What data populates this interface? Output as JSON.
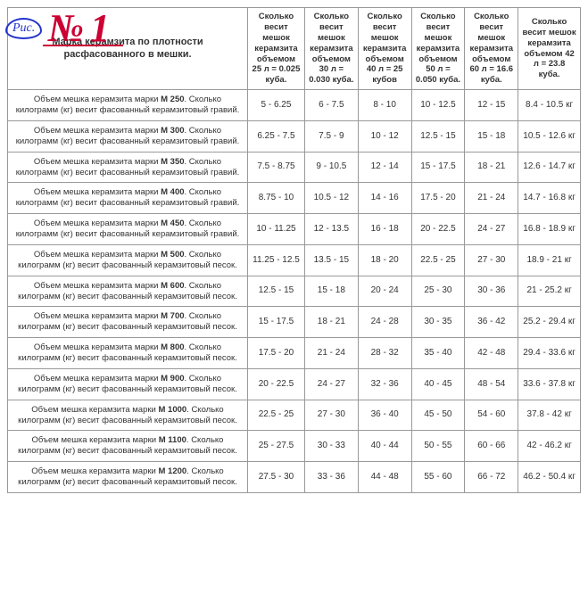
{
  "annotation": {
    "label": "Рис.",
    "number": "№ 1"
  },
  "mainHeader": "Марка керамзита по плотности расфасованного в мешки.",
  "columns": [
    "Сколько весит мешок керамзита объемом 25 л = 0.025 куба.",
    "Сколько весит мешок керамзита объемом 30 л = 0.030 куба.",
    "Сколько весит мешок керамзита объемом 40 л = 25 кубов",
    "Сколько весит мешок керамзита объемом 50 л = 0.050 куба.",
    "Сколько весит мешок керамзита объемом 60 л = 16.6 куба.",
    "Сколько весит мешок керамзита объемом 42 л = 23.8 куба."
  ],
  "rows": [
    {
      "pre": "Объем мешка керамзита марки ",
      "mark": "М 250",
      "post": ". Сколько килограмм (кг) весит фасованный керамзитовый гравий.",
      "v": [
        "5 - 6.25",
        "6 - 7.5",
        "8 - 10",
        "10 - 12.5",
        "12 - 15",
        "8.4 - 10.5 кг"
      ]
    },
    {
      "pre": "Объем мешка керамзита марки ",
      "mark": "М 300",
      "post": ". Сколько килограмм (кг) весит фасованный керамзитовый гравий.",
      "v": [
        "6.25 - 7.5",
        "7.5 - 9",
        "10 - 12",
        "12.5 - 15",
        "15 - 18",
        "10.5 - 12.6 кг"
      ]
    },
    {
      "pre": "Объем мешка керамзита марки ",
      "mark": "М 350",
      "post": ". Сколько килограмм (кг) весит фасованный керамзитовый гравий.",
      "v": [
        "7.5 - 8.75",
        "9 - 10.5",
        "12 - 14",
        "15 - 17.5",
        "18 - 21",
        "12.6 - 14.7 кг"
      ]
    },
    {
      "pre": "Объем мешка керамзита марки ",
      "mark": "М 400",
      "post": ". Сколько килограмм (кг) весит фасованный керамзитовый гравий.",
      "v": [
        "8.75 - 10",
        "10.5 - 12",
        "14 - 16",
        "17.5 - 20",
        "21 - 24",
        "14.7 - 16.8 кг"
      ]
    },
    {
      "pre": "Объем мешка керамзита марки ",
      "mark": "М 450",
      "post": ". Сколько килограмм (кг) весит фасованный керамзитовый гравий.",
      "v": [
        "10 - 11.25",
        "12 - 13.5",
        "16 - 18",
        "20 - 22.5",
        "24 - 27",
        "16.8 - 18.9 кг"
      ]
    },
    {
      "pre": "Объем мешка керамзита марки ",
      "mark": "М 500",
      "post": ". Сколько килограмм (кг) весит фасованный керамзитовый песок.",
      "v": [
        "11.25 - 12.5",
        "13.5 - 15",
        "18 - 20",
        "22.5 - 25",
        "27 - 30",
        "18.9 - 21 кг"
      ]
    },
    {
      "pre": "Объем мешка керамзита марки ",
      "mark": "М 600",
      "post": ". Сколько килограмм (кг) весит фасованный керамзитовый песок.",
      "v": [
        "12.5 - 15",
        "15 - 18",
        "20 - 24",
        "25 - 30",
        "30 - 36",
        "21 - 25.2 кг"
      ]
    },
    {
      "pre": "Объем мешка керамзита марки ",
      "mark": "М 700",
      "post": ". Сколько килограмм (кг) весит фасованный керамзитовый песок.",
      "v": [
        "15 - 17.5",
        "18 - 21",
        "24 - 28",
        "30 - 35",
        "36 - 42",
        "25.2 - 29.4 кг"
      ]
    },
    {
      "pre": "Объем мешка керамзита марки ",
      "mark": "М 800",
      "post": ". Сколько килограмм (кг) весит фасованный керамзитовый песок.",
      "v": [
        "17.5 - 20",
        "21 - 24",
        "28 - 32",
        "35 - 40",
        "42 - 48",
        "29.4 - 33.6 кг"
      ]
    },
    {
      "pre": "Объем мешка керамзита марки ",
      "mark": "М 900",
      "post": ". Сколько килограмм (кг) весит фасованный керамзитовый песок.",
      "v": [
        "20 - 22.5",
        "24 - 27",
        "32 - 36",
        "40 - 45",
        "48 - 54",
        "33.6 - 37.8 кг"
      ]
    },
    {
      "pre": "Объем мешка керамзита марки ",
      "mark": "М 1000",
      "post": ". Сколько килограмм (кг) весит фасованный керамзитовый песок.",
      "v": [
        "22.5 - 25",
        "27 - 30",
        "36 - 40",
        "45 - 50",
        "54 - 60",
        "37.8 - 42 кг"
      ]
    },
    {
      "pre": "Объем мешка керамзита марки ",
      "mark": "М 1100",
      "post": ". Сколько килограмм (кг) весит фасованный керамзитовый песок.",
      "v": [
        "25 - 27.5",
        "30 - 33",
        "40 - 44",
        "50 - 55",
        "60 - 66",
        "42 - 46.2 кг"
      ]
    },
    {
      "pre": "Объем мешка керамзита марки ",
      "mark": "М 1200",
      "post": ". Сколько килограмм (кг) весит фасованный керамзитовый песок.",
      "v": [
        "27.5 - 30",
        "33 - 36",
        "44 - 48",
        "55 - 60",
        "66 - 72",
        "46.2 - 50.4 кг"
      ]
    }
  ]
}
